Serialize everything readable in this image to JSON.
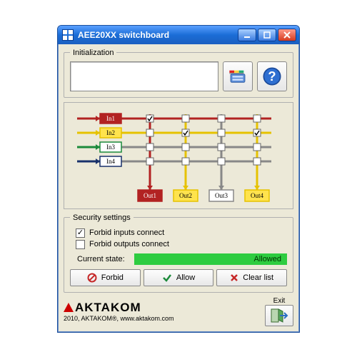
{
  "window": {
    "title": "AEE20XX switchboard"
  },
  "init": {
    "legend": "Initialization"
  },
  "diagram": {
    "inputs": [
      {
        "label": "In1",
        "color": "#b22222",
        "fill": "#b22222",
        "text_color": "#ffffff"
      },
      {
        "label": "In2",
        "color": "#e6c200",
        "fill": "#ffe34d",
        "text_color": "#000000"
      },
      {
        "label": "In3",
        "color": "#1b8a3a",
        "fill": "#ffffff",
        "text_color": "#000000"
      },
      {
        "label": "In4",
        "color": "#18316b",
        "fill": "#ffffff",
        "text_color": "#000000"
      }
    ],
    "outputs": [
      {
        "label": "Out1",
        "color": "#b22222",
        "fill": "#b22222",
        "text_color": "#ffffff"
      },
      {
        "label": "Out2",
        "color": "#e6c200",
        "fill": "#ffe34d",
        "text_color": "#000000"
      },
      {
        "label": "Out3",
        "color": "#888888",
        "fill": "#ffffff",
        "text_color": "#000000"
      },
      {
        "label": "Out4",
        "color": "#e6c200",
        "fill": "#ffe34d",
        "text_color": "#000000"
      }
    ],
    "connections": {
      "row_to_col_checked": [
        [
          true,
          false,
          false,
          false
        ],
        [
          false,
          true,
          false,
          true
        ],
        [
          false,
          false,
          false,
          false
        ],
        [
          false,
          false,
          false,
          false
        ]
      ],
      "row_line_color": [
        "#b22222",
        "#e6c200",
        "#888888",
        "#888888"
      ],
      "col_line_color": [
        "#b22222",
        "#e6c200",
        "#888888",
        "#e6c200"
      ]
    },
    "grid_color": "#b0b0b0",
    "bg": "#ece9d8"
  },
  "security": {
    "legend": "Security settings",
    "forbid_inputs_label": "Forbid inputs connect",
    "forbid_inputs_checked": true,
    "forbid_outputs_label": "Forbid outputs connect",
    "forbid_outputs_checked": false,
    "current_state_label": "Current state:",
    "current_state_value": "Allowed",
    "state_bar_bg": "#2ecc40",
    "forbid_btn": "Forbid",
    "allow_btn": "Allow",
    "clear_btn": "Clear list"
  },
  "footer": {
    "brand_name": "AKTAKOM",
    "copyright": "2010, AKTAKOM®, www.aktakom.com",
    "exit_label": "Exit"
  },
  "colors": {
    "red": "#c62828",
    "green": "#1b8a3a",
    "xred": "#c62828"
  }
}
